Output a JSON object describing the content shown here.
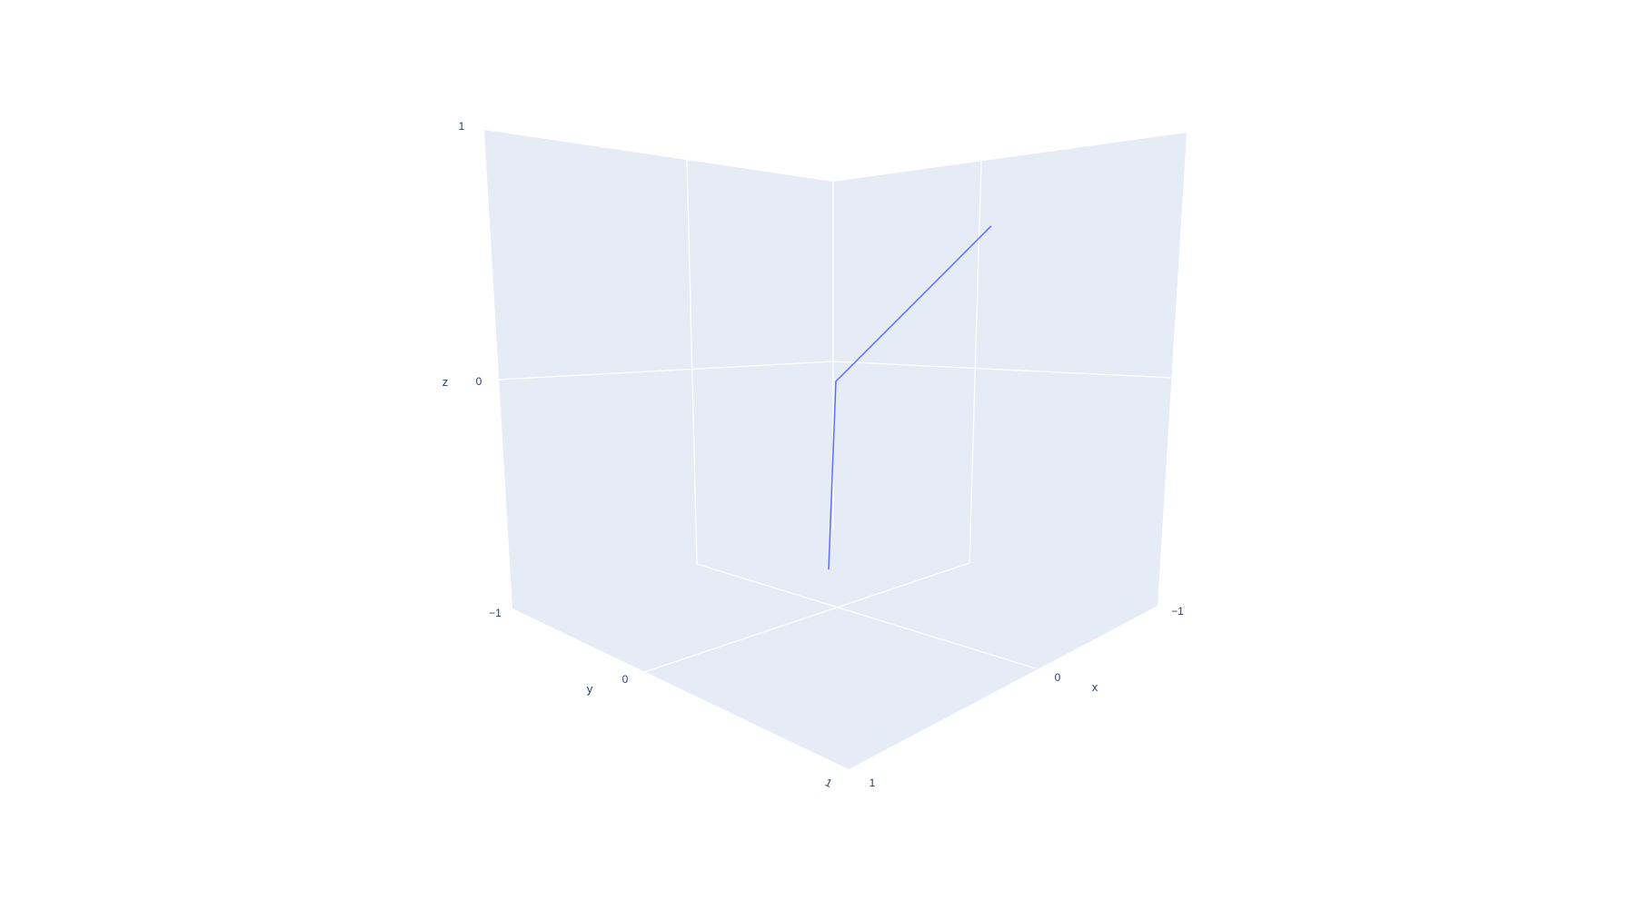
{
  "chart_data": {
    "type": "line3d",
    "series": [
      {
        "points": [
          {
            "x": 0,
            "y": 0,
            "z": -1
          },
          {
            "x": 0,
            "y": 0,
            "z": 0
          },
          {
            "x": -1,
            "y": -0.4,
            "z": 0.8
          }
        ]
      }
    ],
    "axes": {
      "x": {
        "title": "x",
        "range": [
          -1,
          1
        ],
        "tick_values": [
          -1,
          0,
          1
        ],
        "tick_labels": [
          "−1",
          "0",
          "1"
        ]
      },
      "y": {
        "title": "y",
        "range": [
          -1,
          1
        ],
        "tick_values": [
          -1,
          0,
          1
        ],
        "tick_labels": [
          "−1",
          "0",
          "1"
        ]
      },
      "z": {
        "title": "z",
        "range": [
          -1,
          1
        ],
        "tick_values": [
          -1,
          0,
          1
        ],
        "tick_labels": [
          "−1",
          "0",
          "1"
        ]
      }
    },
    "grid": true,
    "colors": {
      "line": "#636efa",
      "pane": "#e5ecf6",
      "grid": "#ffffff",
      "text": "#2a3f5f"
    }
  }
}
